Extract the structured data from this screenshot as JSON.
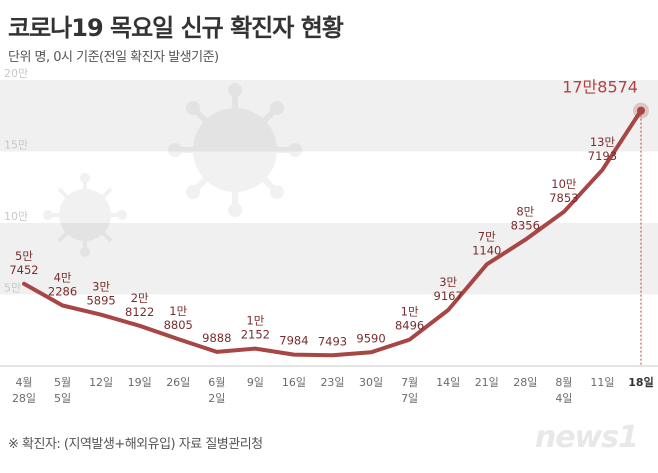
{
  "header": {
    "title": "코로나19 목요일 신규 확진자 현황",
    "subtitle": "단위  명, 0시 기준(전일 확진자 발생기준)"
  },
  "footer": {
    "footnote": "※ 확진자: (지역발생+해외유입)   자료  질병관리청",
    "logo": "news1"
  },
  "colors": {
    "line": "#a84545",
    "band": "#f0f0f0",
    "label": "#7a2c2c",
    "highlight_label": "#b34242"
  },
  "chart_data": {
    "type": "line",
    "title": "코로나19 목요일 신규 확진자 현황",
    "ylim": [
      0,
      200000
    ],
    "yticks": [
      {
        "value": 50000,
        "label": "5만"
      },
      {
        "value": 100000,
        "label": "10만"
      },
      {
        "value": 150000,
        "label": "15만"
      },
      {
        "value": 200000,
        "label": "20만"
      }
    ],
    "categories": [
      [
        "4월",
        "28일"
      ],
      [
        "5월",
        "5일"
      ],
      [
        "12일"
      ],
      [
        "19일"
      ],
      [
        "26일"
      ],
      [
        "6월",
        "2일"
      ],
      [
        "9일"
      ],
      [
        "16일"
      ],
      [
        "23일"
      ],
      [
        "30일"
      ],
      [
        "7월",
        "7일"
      ],
      [
        "14일"
      ],
      [
        "21일"
      ],
      [
        "28일"
      ],
      [
        "8월",
        "4일"
      ],
      [
        "11일"
      ],
      [
        "18일"
      ]
    ],
    "values": [
      57452,
      42286,
      35895,
      28122,
      18805,
      9888,
      12152,
      7984,
      7493,
      9590,
      18496,
      39167,
      71140,
      88356,
      107853,
      137193,
      178574
    ],
    "data_labels": [
      [
        "5만",
        "7452"
      ],
      [
        "4만",
        "2286"
      ],
      [
        "3만",
        "5895"
      ],
      [
        "2만",
        "8122"
      ],
      [
        "1만",
        "8805"
      ],
      [
        "9888"
      ],
      [
        "1만",
        "2152"
      ],
      [
        "7984"
      ],
      [
        "7493"
      ],
      [
        "9590"
      ],
      [
        "1만",
        "8496"
      ],
      [
        "3만",
        "9167"
      ],
      [
        "7만",
        "1140"
      ],
      [
        "8만",
        "8356"
      ],
      [
        "10만",
        "7853"
      ],
      [
        "13만",
        "7193"
      ],
      [
        "17만8574"
      ]
    ],
    "grid": "alternating horizontal bands",
    "legend": "none"
  }
}
